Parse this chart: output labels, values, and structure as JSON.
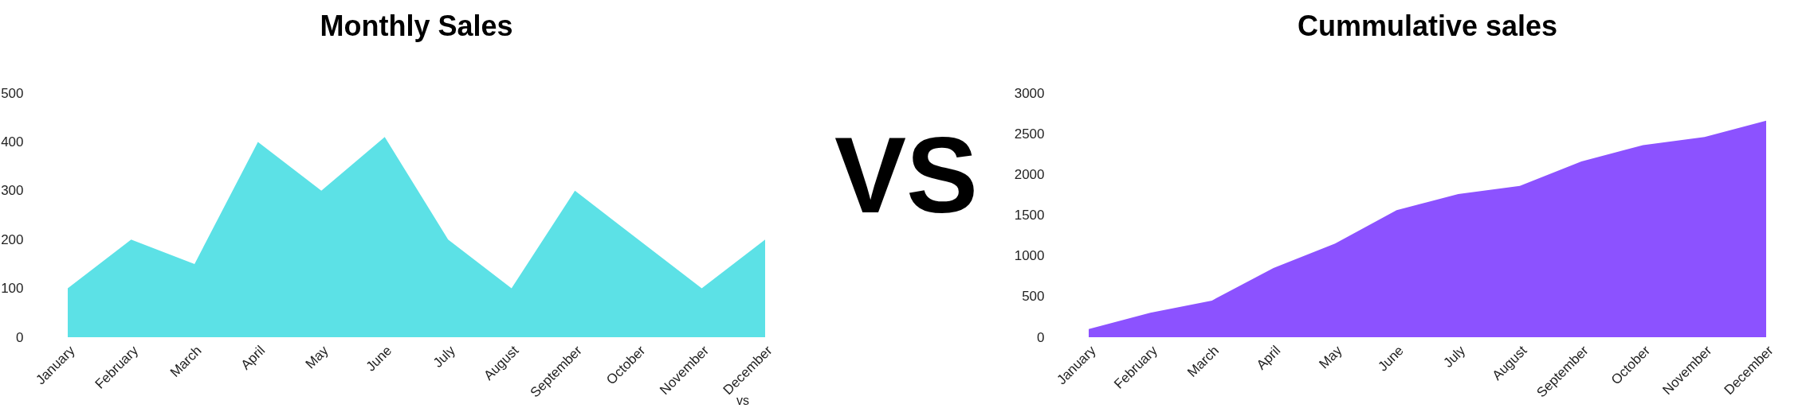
{
  "chart_data": [
    {
      "type": "area",
      "title": "Monthly Sales",
      "categories": [
        "January",
        "February",
        "March",
        "April",
        "May",
        "June",
        "July",
        "August",
        "September",
        "October",
        "November",
        "December"
      ],
      "values": [
        100,
        200,
        150,
        400,
        300,
        410,
        200,
        100,
        300,
        200,
        100,
        200
      ],
      "color": "#5ce1e6",
      "ylim": [
        0,
        500
      ],
      "yticks": [
        0,
        100,
        200,
        300,
        400,
        500
      ],
      "grid": false,
      "annotations": [
        "vs"
      ]
    },
    {
      "type": "other",
      "annotations": [
        "VS"
      ]
    },
    {
      "type": "area",
      "title": "Cummulative sales",
      "categories": [
        "January",
        "February",
        "March",
        "April",
        "May",
        "June",
        "July",
        "August",
        "September",
        "October",
        "November",
        "December"
      ],
      "values": [
        100,
        300,
        450,
        850,
        1150,
        1560,
        1760,
        1860,
        2160,
        2360,
        2460,
        2660
      ],
      "color": "#8c52ff",
      "ylim": [
        0,
        3000
      ],
      "yticks": [
        0,
        500,
        1000,
        1500,
        2000,
        2500,
        3000
      ],
      "grid": false
    }
  ]
}
